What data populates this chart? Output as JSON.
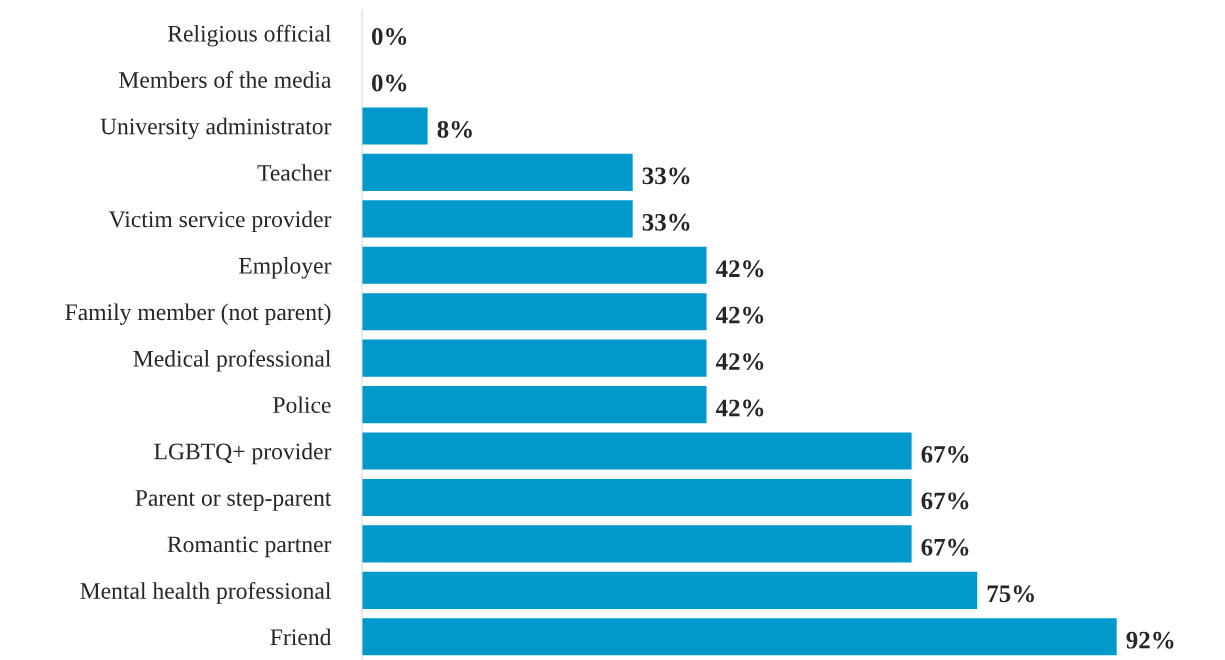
{
  "chart_data": {
    "type": "bar",
    "orientation": "horizontal",
    "categories": [
      "Religious official",
      "Members of the media",
      "University administrator",
      "Teacher",
      "Victim service provider",
      "Employer",
      "Family member (not parent)",
      "Medical professional",
      "Police",
      "LGBTQ+ provider",
      "Parent or step-parent",
      "Romantic partner",
      "Mental health professional",
      "Friend"
    ],
    "values": [
      0,
      0,
      8,
      33,
      33,
      42,
      42,
      42,
      42,
      67,
      67,
      67,
      75,
      92
    ],
    "value_labels": [
      "0%",
      "0%",
      "8%",
      "33%",
      "33%",
      "42%",
      "42%",
      "42%",
      "42%",
      "67%",
      "67%",
      "67%",
      "75%",
      "92%"
    ],
    "color": "#0099cc",
    "grid": false,
    "legend": false,
    "tick_labels": "y"
  }
}
